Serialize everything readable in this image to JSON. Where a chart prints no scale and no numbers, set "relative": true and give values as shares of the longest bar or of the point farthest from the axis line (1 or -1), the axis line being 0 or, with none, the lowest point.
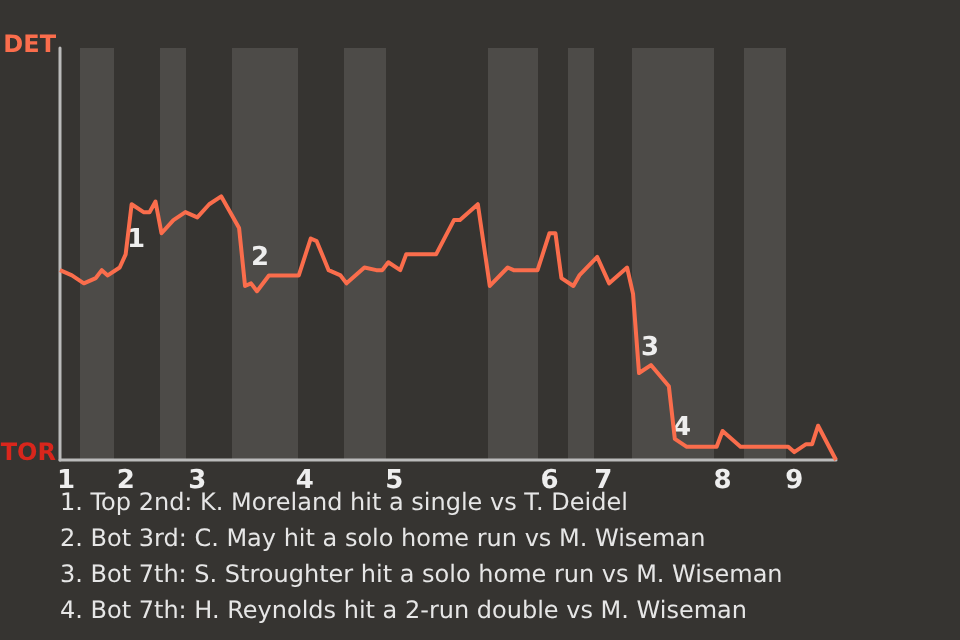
{
  "chart_data": {
    "type": "line",
    "relative": true,
    "categories": [
      null,
      "1",
      null,
      null,
      null,
      null,
      null,
      null,
      null,
      null,
      null,
      "2",
      null,
      null,
      null,
      null,
      null,
      null,
      null,
      null,
      null,
      null,
      null,
      "3",
      null,
      null,
      null,
      null,
      null,
      null,
      null,
      null,
      null,
      null,
      null,
      null,
      null,
      null,
      null,
      null,
      null,
      "4",
      null,
      null,
      null,
      null,
      null,
      null,
      null,
      null,
      null,
      null,
      null,
      null,
      null,
      null,
      "5",
      null,
      null,
      null,
      null,
      null,
      null,
      null,
      null,
      null,
      null,
      null,
      null,
      null,
      null,
      null,
      null,
      null,
      null,
      null,
      null,
      null,
      null,
      null,
      null,
      null,
      "6",
      null,
      null,
      null,
      null,
      null,
      null,
      null,
      null,
      "7",
      null,
      null,
      null,
      null,
      null,
      null,
      null,
      null,
      null,
      null,
      null,
      null,
      null,
      null,
      null,
      null,
      null,
      null,
      null,
      "8",
      null,
      null,
      null,
      null,
      null,
      null,
      null,
      null,
      null,
      null,
      null,
      "9",
      null,
      null,
      null,
      null,
      null,
      null,
      null
    ],
    "series": [
      {
        "color": "#fa6d4c",
        "values": [
          0.72,
          null,
          0.7,
          null,
          0.67,
          null,
          0.69,
          0.72,
          0.7,
          null,
          0.73,
          0.78,
          0.97,
          null,
          0.94,
          0.94,
          0.98,
          0.86,
          null,
          0.91,
          null,
          0.94,
          null,
          0.92,
          null,
          0.97,
          null,
          1,
          null,
          null,
          0.88,
          0.66,
          0.67,
          0.64,
          null,
          0.7,
          null,
          null,
          null,
          null,
          0.7,
          null,
          0.84,
          0.83,
          null,
          0.72,
          null,
          0.7,
          0.67,
          null,
          null,
          0.73,
          null,
          0.72,
          0.72,
          0.75,
          null,
          0.72,
          0.78,
          null,
          null,
          null,
          null,
          0.78,
          null,
          null,
          0.91,
          0.91,
          null,
          null,
          0.97,
          null,
          0.66,
          null,
          null,
          0.73,
          0.72,
          null,
          null,
          null,
          0.72,
          null,
          0.86,
          0.86,
          0.69,
          null,
          0.66,
          0.7,
          null,
          null,
          0.77,
          null,
          0.67,
          null,
          null,
          0.73,
          0.63,
          0.33,
          null,
          0.36,
          null,
          null,
          0.28,
          0.08,
          null,
          0.05,
          null,
          null,
          null,
          null,
          0.05,
          0.11,
          null,
          null,
          0.05,
          null,
          null,
          null,
          null,
          null,
          0.05,
          null,
          0.05,
          0.03,
          null,
          0.06,
          0.06,
          0.13,
          null,
          null,
          0
        ]
      }
    ],
    "annotations": [
      "DET",
      "TOR",
      "1",
      "2",
      "3",
      "4",
      "1. Top 2nd: K. Moreland hit a single vs T. Deidel",
      "2. Bot 3rd: C. May hit a solo home run vs M. Wiseman",
      "3. Bot 7th: S. Stroughter hit a solo home run vs M. Wiseman",
      "4. Bot 7th: H. Reynolds hit a 2-run double vs M. Wiseman"
    ]
  }
}
